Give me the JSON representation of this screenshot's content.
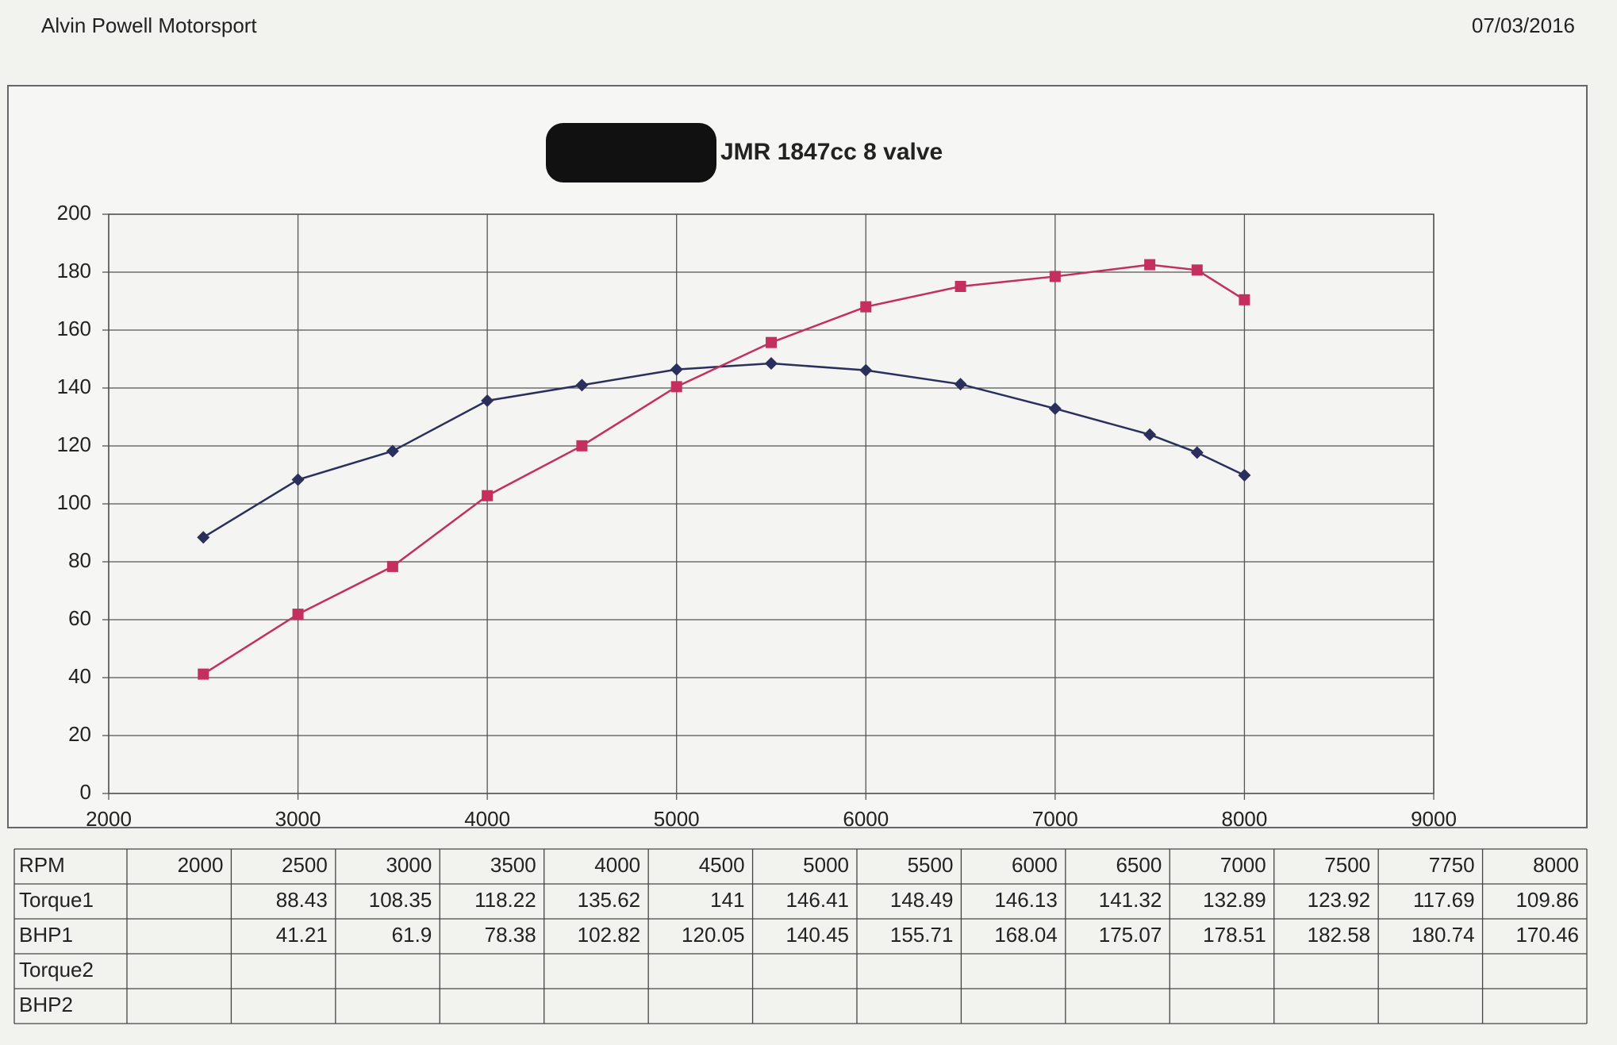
{
  "header": {
    "company": "Alvin Powell Motorsport",
    "date": "07/03/2016"
  },
  "chart_data": {
    "type": "line",
    "title": "JMR  1847cc  8 valve",
    "x": [
      2000,
      2500,
      3000,
      3500,
      4000,
      4500,
      5000,
      5500,
      6000,
      6500,
      7000,
      7500,
      7750,
      8000
    ],
    "series": [
      {
        "color": "#2b2f5c",
        "marker": "diamond",
        "values": [
          null,
          88.43,
          108.35,
          118.22,
          135.62,
          141,
          146.41,
          148.49,
          146.13,
          141.32,
          132.89,
          123.92,
          117.69,
          109.86
        ]
      },
      {
        "color": "#c42f5e",
        "marker": "square",
        "values": [
          null,
          41.21,
          61.9,
          78.38,
          102.82,
          120.05,
          140.45,
          155.71,
          168.04,
          175.07,
          178.51,
          182.58,
          180.74,
          170.46
        ]
      }
    ],
    "xlim": [
      2000,
      9000
    ],
    "xticks": [
      2000,
      3000,
      4000,
      5000,
      6000,
      7000,
      8000,
      9000
    ],
    "ylim": [
      0,
      200
    ],
    "yticks": [
      0,
      20,
      40,
      60,
      80,
      100,
      120,
      140,
      160,
      180,
      200
    ],
    "grid": true
  },
  "table": {
    "row_labels": [
      "RPM",
      "Torque1",
      "BHP1",
      "Torque2",
      "BHP2"
    ]
  }
}
